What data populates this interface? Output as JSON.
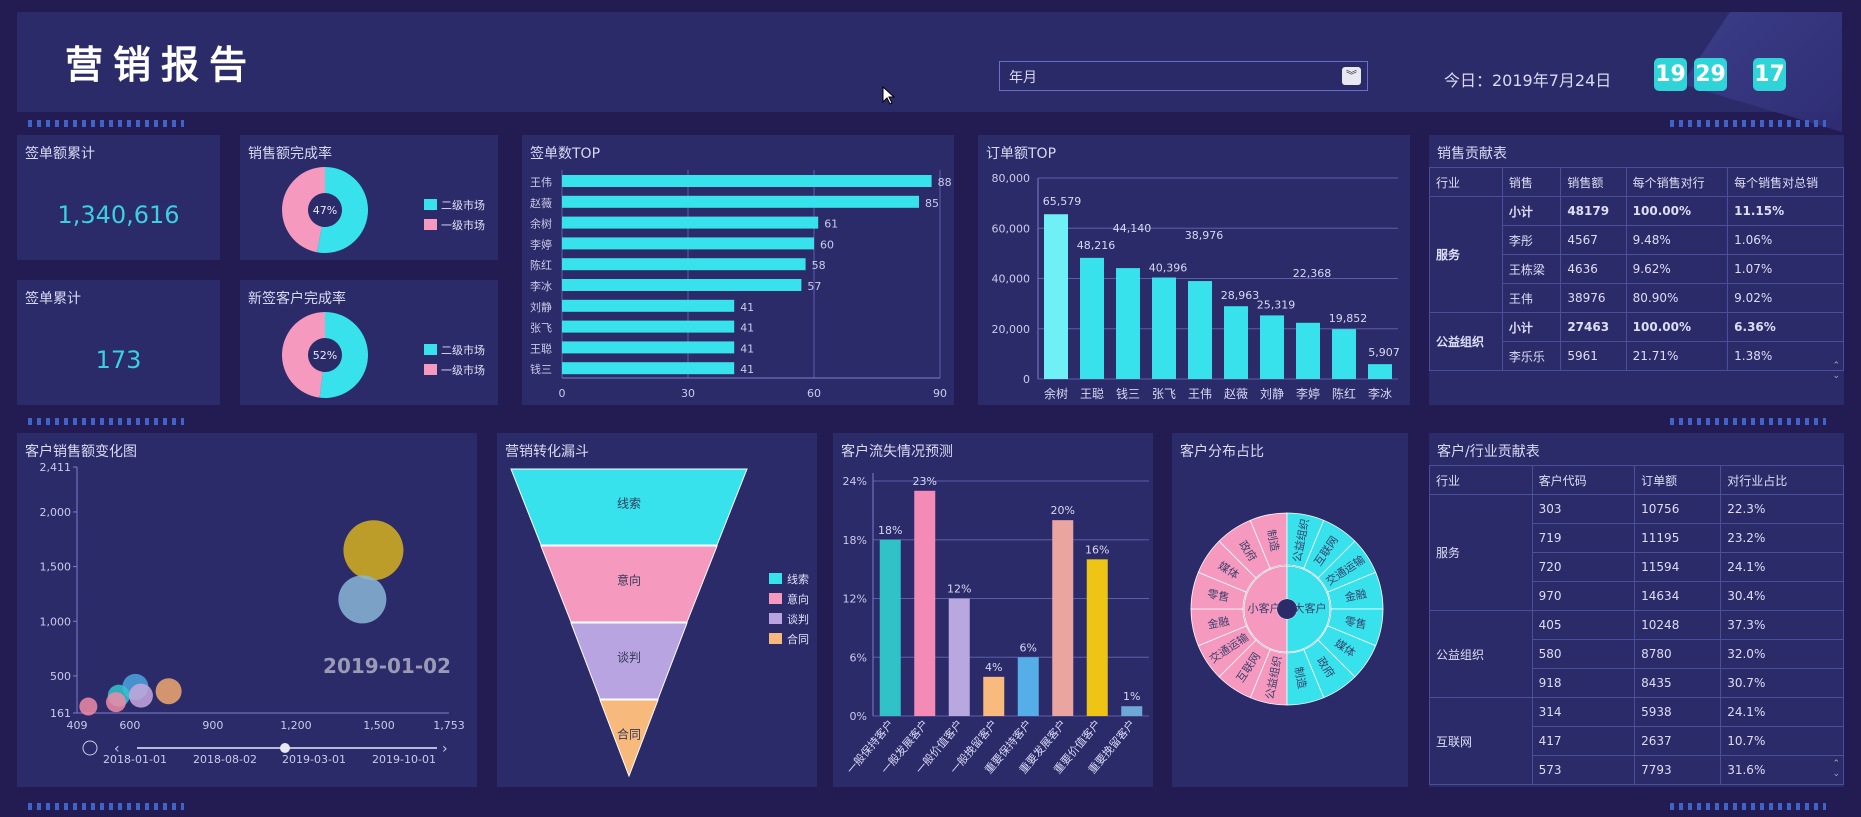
{
  "header": {
    "title": "营销报告",
    "select_value": "年月",
    "today": "今日：2019年7月24日",
    "time": [
      "19",
      "29",
      "17"
    ]
  },
  "kpis": {
    "sign_amount": {
      "title": "签单额累计",
      "value": "1,340,616"
    },
    "sign_count": {
      "title": "签单累计",
      "value": "173"
    }
  },
  "colors": {
    "cyan": "#37e2ec",
    "pink": "#f699bf",
    "lavender": "#b8a4e0",
    "orange": "#f8b97c",
    "panel": "#2c2b6a",
    "bg": "#231c52"
  },
  "chart_data": [
    {
      "type": "pie",
      "title": "销售额完成率",
      "slices": [
        {
          "name": "二级市场",
          "value": 53
        },
        {
          "name": "一级市场",
          "value": 47
        }
      ],
      "center_label": "47%"
    },
    {
      "type": "pie",
      "title": "新签客户完成率",
      "slices": [
        {
          "name": "二级市场",
          "value": 52
        },
        {
          "name": "一级市场",
          "value": 48
        }
      ],
      "center_label": "52%"
    },
    {
      "type": "bar",
      "orientation": "horizontal",
      "title": "签单数TOP",
      "categories": [
        "王伟",
        "赵薇",
        "余树",
        "李婷",
        "陈红",
        "李冰",
        "刘静",
        "张飞",
        "王聪",
        "钱三"
      ],
      "values": [
        88,
        85,
        61,
        60,
        58,
        57,
        41,
        41,
        41,
        41
      ],
      "xticks": [
        "0",
        "30",
        "60",
        "90"
      ],
      "xlim": [
        0,
        90
      ]
    },
    {
      "type": "bar",
      "title": "订单额TOP",
      "categories": [
        "余树",
        "王聪",
        "钱三",
        "张飞",
        "王伟",
        "赵薇",
        "刘静",
        "李婷",
        "陈红",
        "李冰"
      ],
      "values": [
        65579,
        48216,
        44140,
        40396,
        38976,
        28963,
        25319,
        22368,
        19852,
        5907
      ],
      "labels": [
        "65,579",
        "48,216",
        "44,140",
        "40,396",
        "38,976",
        "28,963",
        "25,319",
        "22,368",
        "19,852",
        "5,907"
      ],
      "yticks": [
        "0",
        "20,000",
        "40,000",
        "60,000",
        "80,000"
      ],
      "ylim": [
        0,
        80000
      ]
    },
    {
      "type": "scatter",
      "title": "客户销售额变化图",
      "points": [
        {
          "x": 1480,
          "y": 1650,
          "size": 30,
          "color": "#d7b21e"
        },
        {
          "x": 1440,
          "y": 1200,
          "size": 24,
          "color": "#89b7d6"
        },
        {
          "x": 620,
          "y": 400,
          "size": 13,
          "color": "#4da3e0"
        },
        {
          "x": 740,
          "y": 360,
          "size": 13,
          "color": "#f0a86e"
        },
        {
          "x": 560,
          "y": 320,
          "size": 11,
          "color": "#35c3cf"
        },
        {
          "x": 640,
          "y": 320,
          "size": 12,
          "color": "#c6a8dc"
        },
        {
          "x": 550,
          "y": 260,
          "size": 10,
          "color": "#f08ba6"
        },
        {
          "x": 450,
          "y": 220,
          "size": 9,
          "color": "#f08ba6"
        }
      ],
      "yticks": [
        "161",
        "500",
        "1,000",
        "1,500",
        "2,000",
        "2,411"
      ],
      "xticks": [
        "409",
        "600",
        "900",
        "1,200",
        "1,500",
        "1,753"
      ],
      "xlim": [
        409,
        1753
      ],
      "ylim": [
        161,
        2411
      ],
      "watermark": "2019-01-02",
      "timeline": [
        "2018-01-01",
        "2018-08-02",
        "2019-03-01",
        "2019-10-01"
      ]
    },
    {
      "type": "funnel",
      "title": "营销转化漏斗",
      "stages": [
        "线索",
        "意向",
        "谈判",
        "合同"
      ],
      "legend": [
        "线索",
        "意向",
        "谈判",
        "合同"
      ]
    },
    {
      "type": "bar",
      "title": "客户流失情况预测",
      "categories": [
        "一般保持客户",
        "一般发展客户",
        "一般价值客户",
        "一般挽留客户",
        "重要保持客户",
        "重要发展客户",
        "重要价值客户",
        "重要挽留客户"
      ],
      "values": [
        18,
        23,
        12,
        4,
        6,
        20,
        16,
        1
      ],
      "labels": [
        "18%",
        "23%",
        "12%",
        "4%",
        "6%",
        "20%",
        "16%",
        "1%"
      ],
      "colors": [
        "#2fc3c8",
        "#f38bb6",
        "#b9a7e0",
        "#f8ba7d",
        "#56aee8",
        "#eaa5a0",
        "#eec515",
        "#6fa8d6"
      ],
      "yticks": [
        "0%",
        "6%",
        "12%",
        "18%",
        "24%"
      ],
      "ylim": [
        0,
        24
      ]
    },
    {
      "type": "pie",
      "title": "客户分布占比",
      "inner": [
        {
          "name": "小客户",
          "value": 50
        },
        {
          "name": "大客户",
          "value": 50
        }
      ],
      "outer_left": [
        "公益组织",
        "互联网",
        "交通运输",
        "金融",
        "零售",
        "媒体",
        "政府",
        "制造"
      ],
      "outer_right": [
        "公益组织",
        "互联网",
        "交通运输",
        "金融",
        "零售",
        "媒体",
        "政府",
        "制造"
      ]
    }
  ],
  "sales_table": {
    "title": "销售贡献表",
    "headers": [
      "行业",
      "销售",
      "销售额",
      "每个销售对行",
      "每个销售对总销"
    ],
    "groups": [
      {
        "industry": "服务",
        "rows": [
          [
            "小计",
            "48179",
            "100.00%",
            "11.15%"
          ],
          [
            "李彤",
            "4567",
            "9.48%",
            "1.06%"
          ],
          [
            "王栋梁",
            "4636",
            "9.62%",
            "1.07%"
          ],
          [
            "王伟",
            "38976",
            "80.90%",
            "9.02%"
          ]
        ]
      },
      {
        "industry": "公益组织",
        "rows": [
          [
            "小计",
            "27463",
            "100.00%",
            "6.36%"
          ],
          [
            "李乐乐",
            "5961",
            "21.71%",
            "1.38%"
          ]
        ]
      }
    ]
  },
  "customer_table": {
    "title": "客户/行业贡献表",
    "headers": [
      "行业",
      "客户代码",
      "订单额",
      "对行业占比"
    ],
    "groups": [
      {
        "industry": "服务",
        "rows": [
          [
            "303",
            "10756",
            "22.3%"
          ],
          [
            "719",
            "11195",
            "23.2%"
          ],
          [
            "720",
            "11594",
            "24.1%"
          ],
          [
            "970",
            "14634",
            "30.4%"
          ]
        ]
      },
      {
        "industry": "公益组织",
        "rows": [
          [
            "405",
            "10248",
            "37.3%"
          ],
          [
            "580",
            "8780",
            "32.0%"
          ],
          [
            "918",
            "8435",
            "30.7%"
          ]
        ]
      },
      {
        "industry": "互联网",
        "rows": [
          [
            "314",
            "5938",
            "24.1%"
          ],
          [
            "417",
            "2637",
            "10.7%"
          ],
          [
            "573",
            "7793",
            "31.6%"
          ]
        ]
      }
    ]
  }
}
